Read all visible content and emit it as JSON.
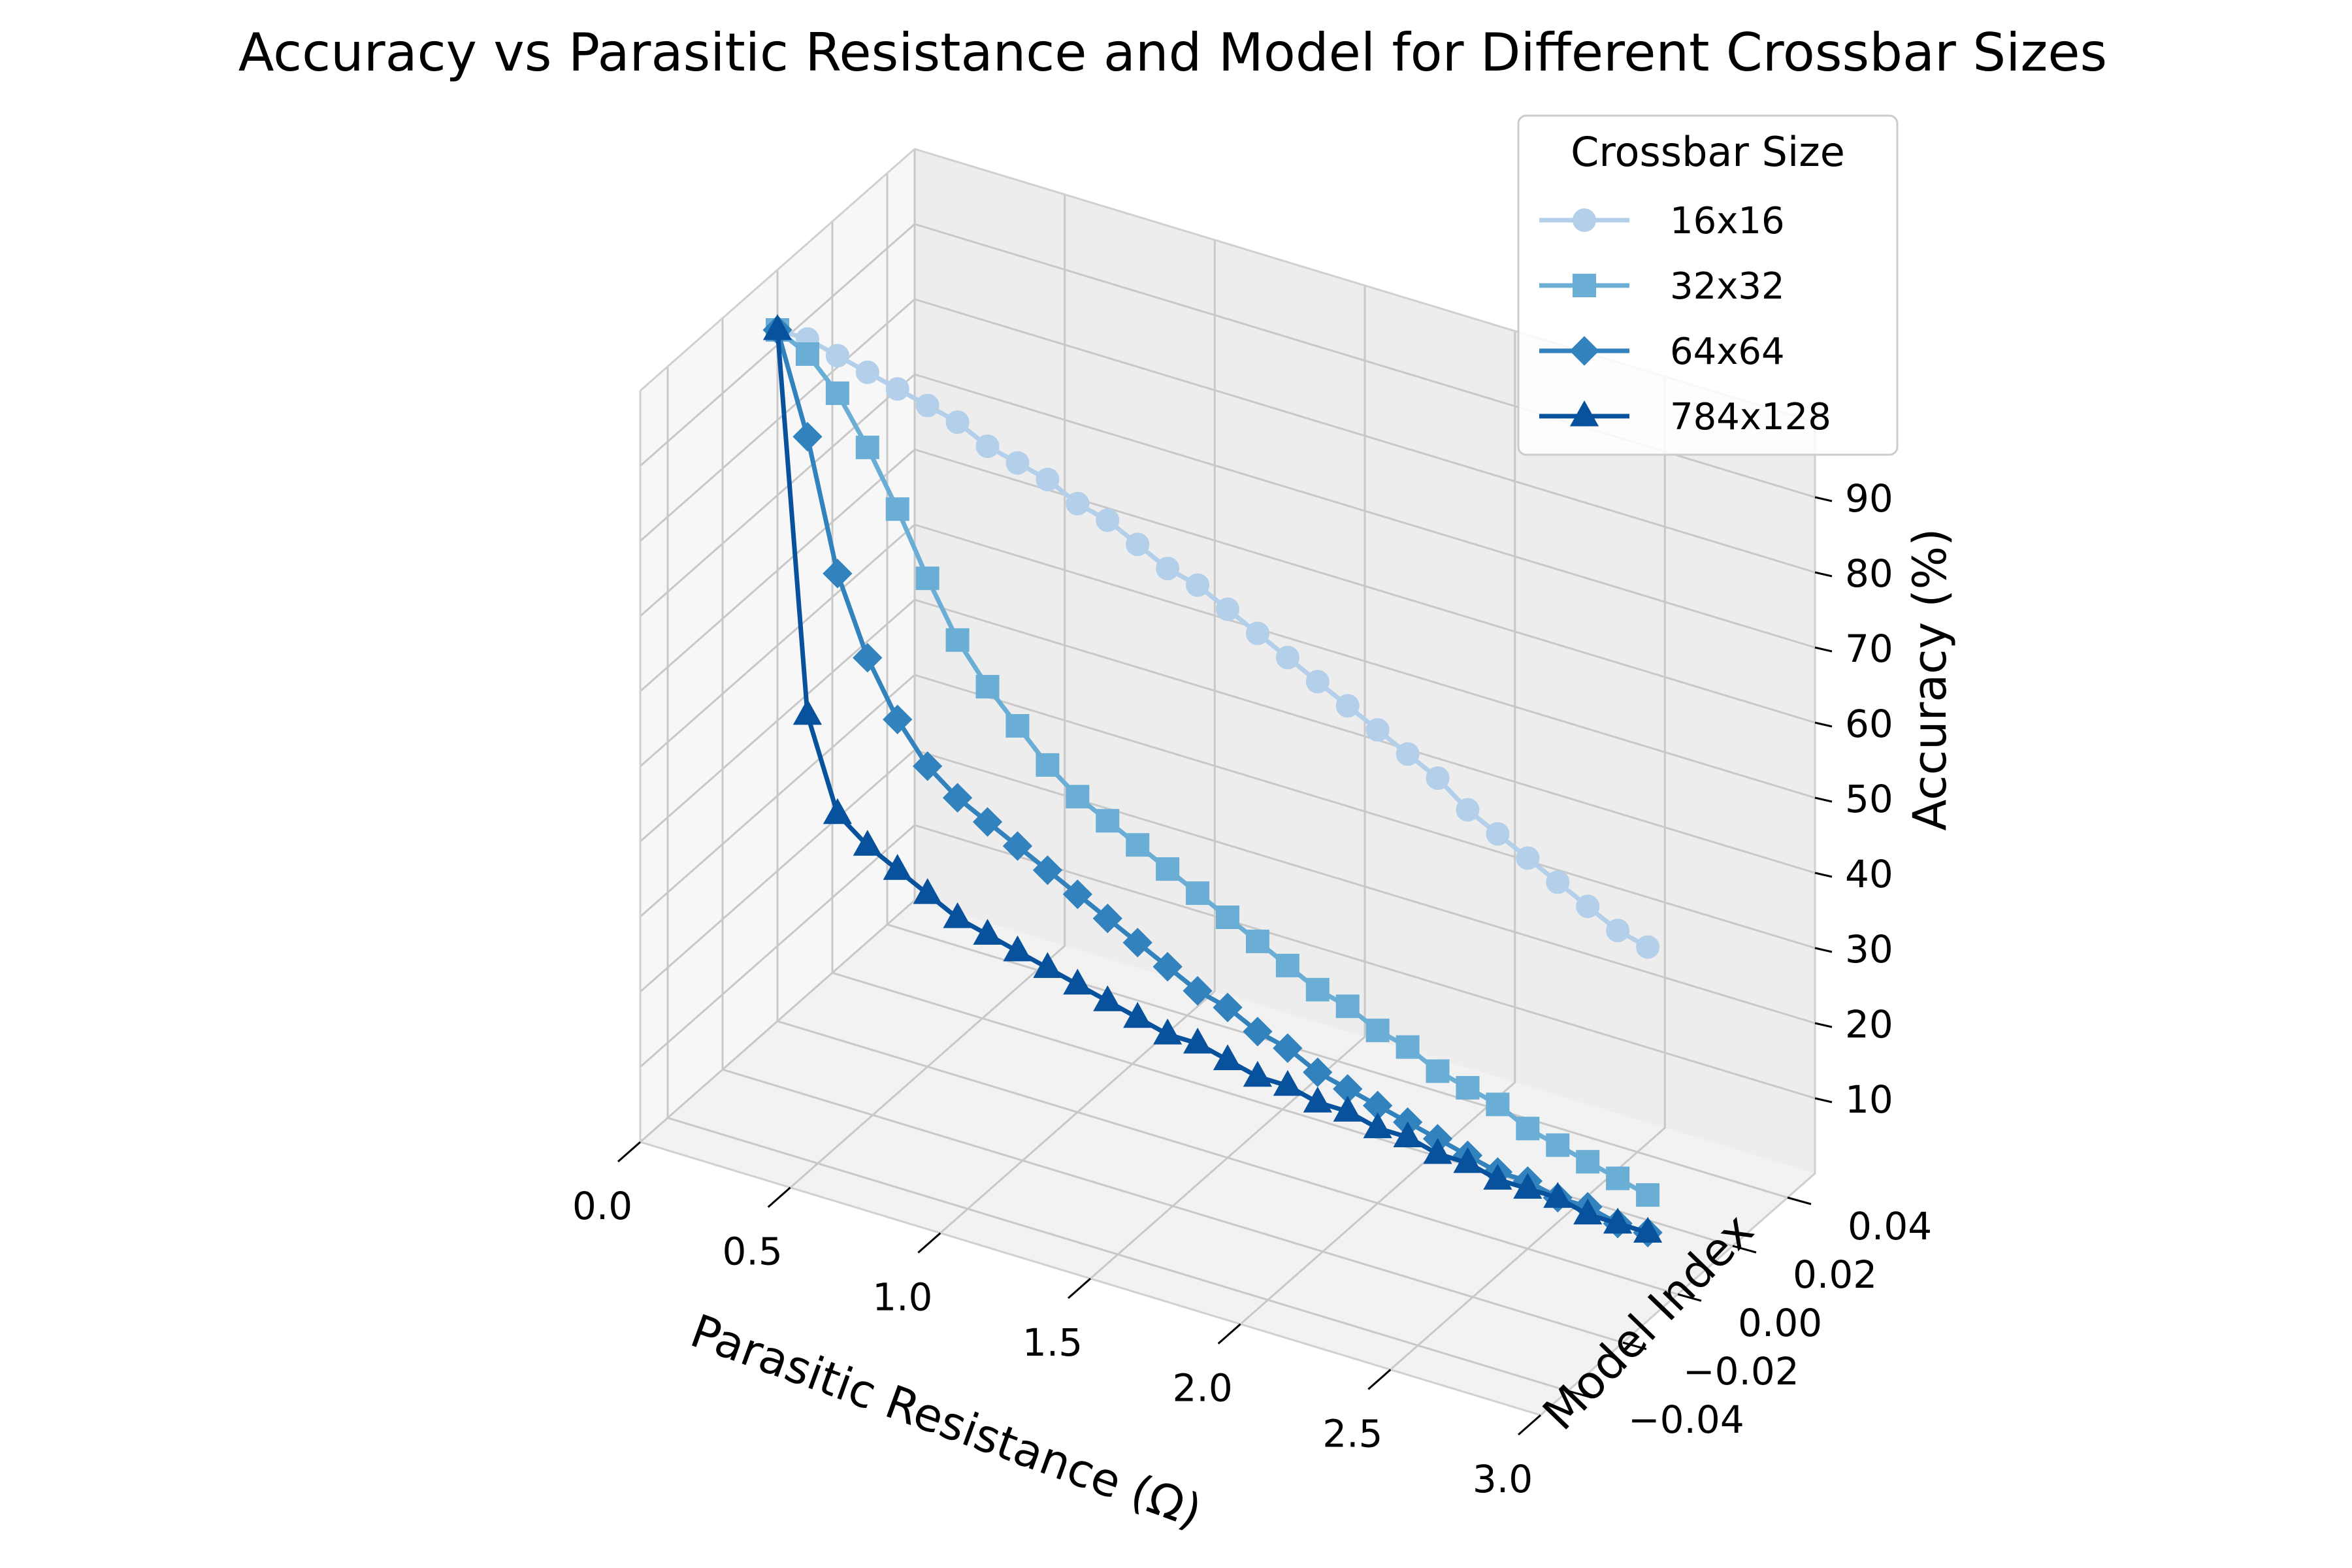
{
  "chart_data": {
    "type": "line",
    "title": "Accuracy vs Parasitic Resistance and Model for Different Crossbar Sizes",
    "xlabel": "Parasitic Resistance (Ω)",
    "ylabel": "Model Index",
    "zlabel": "Accuracy (%)",
    "xlim": [
      0,
      3
    ],
    "ylim": [
      -0.05,
      0.05
    ],
    "zlim": [
      0,
      100
    ],
    "x_ticks": [
      "0.0",
      "0.5",
      "1.0",
      "1.5",
      "2.0",
      "2.5",
      "3.0"
    ],
    "y_ticks": [
      "−0.04",
      "−0.02",
      "0.00",
      "0.02",
      "0.04"
    ],
    "z_ticks": [
      "10",
      "20",
      "30",
      "40",
      "50",
      "60",
      "70",
      "80",
      "90"
    ],
    "grid": true,
    "legend": {
      "title": "Crossbar Size",
      "position": "top-right"
    },
    "x": [
      0.0,
      0.1,
      0.2,
      0.3,
      0.4,
      0.5,
      0.6,
      0.7,
      0.8,
      0.9,
      1.0,
      1.1,
      1.2,
      1.3,
      1.4,
      1.5,
      1.6,
      1.7,
      1.8,
      1.9,
      2.0,
      2.1,
      2.2,
      2.3,
      2.4,
      2.5,
      2.6,
      2.7,
      2.8,
      2.9
    ],
    "series": [
      {
        "name": "16x16",
        "color": "#b3cfe9",
        "marker": "circle",
        "values": [
          92,
          92,
          91,
          90,
          89,
          88,
          87,
          85,
          84,
          83,
          81,
          80,
          78,
          76,
          75,
          73,
          71,
          69,
          67,
          65,
          63,
          61,
          59,
          56,
          54,
          52,
          50,
          48,
          46,
          45
        ]
      },
      {
        "name": "32x32",
        "color": "#6aaed6",
        "marker": "square",
        "values": [
          92,
          90,
          86,
          80,
          73,
          65,
          58,
          53,
          49,
          45,
          42,
          40,
          38,
          36,
          34,
          32,
          30,
          28,
          26,
          25,
          23,
          22,
          20,
          19,
          18,
          16,
          15,
          14,
          13,
          12
        ]
      },
      {
        "name": "64x64",
        "color": "#3182bd",
        "marker": "diamond",
        "values": [
          92,
          79,
          62,
          52,
          45,
          40,
          37,
          35,
          33,
          31,
          29,
          27,
          25,
          23,
          21,
          20,
          18,
          17,
          15,
          14,
          13,
          12,
          11,
          10,
          9,
          9,
          8,
          8,
          7,
          7
        ]
      },
      {
        "name": "784x128",
        "color": "#08519c",
        "marker": "triangle",
        "values": [
          92,
          42,
          30,
          27,
          25,
          23,
          21,
          20,
          19,
          18,
          17,
          16,
          15,
          14,
          14,
          13,
          12,
          12,
          11,
          11,
          10,
          10,
          9,
          9,
          8,
          8,
          8,
          7,
          7,
          7
        ]
      }
    ]
  }
}
